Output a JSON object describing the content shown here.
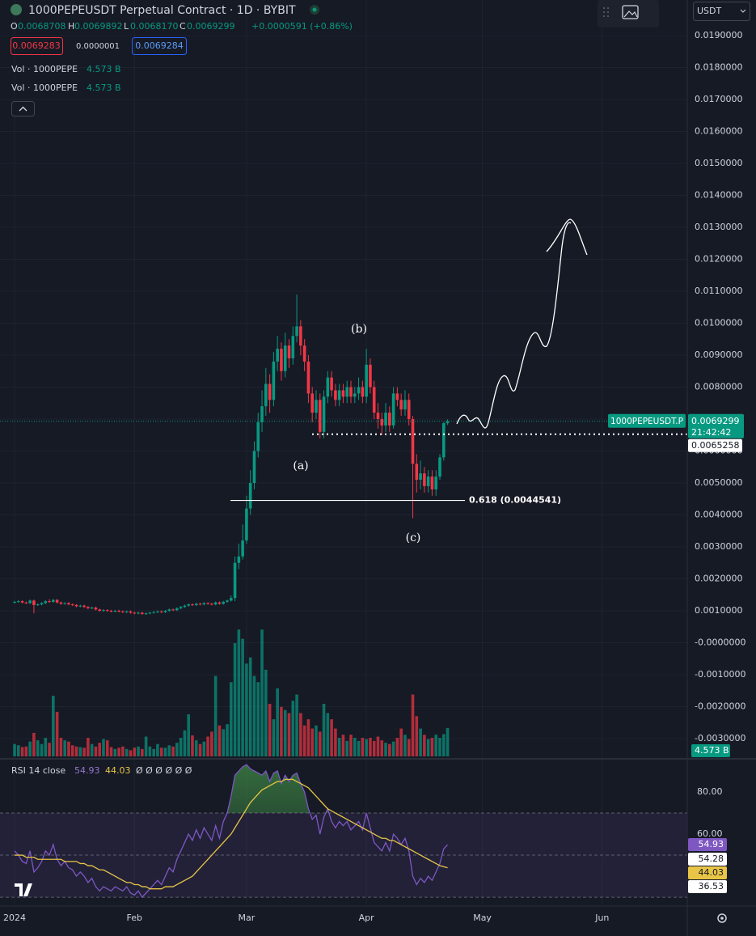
{
  "chart_data": {
    "type": "candlestick",
    "title": "1000PEPEUSDT Perpetual Contract · 1D · BYBIT",
    "legend_ohlc": {
      "O": "O",
      "open": "0.0068708",
      "H": "H",
      "high": "0.0069892",
      "L": "L",
      "low": "0.0068170",
      "C": "C",
      "close": "0.0069299",
      "change": "+0.0000591 (+0.86%)"
    },
    "sell_price": "0.0069283",
    "spread": "0.0000001",
    "buy_price": "0.0069284",
    "currency": "USDT",
    "volume_legend": [
      {
        "name": "Vol · 1000PEPE",
        "value": "4.573 B"
      },
      {
        "name": "Vol · 1000PEPE",
        "value": "4.573 B"
      }
    ],
    "up_color": "#089981",
    "down_color": "#f23645",
    "open": [
      0.00126,
      0.00128,
      0.0013,
      0.00126,
      0.00124,
      0.00132,
      0.00118,
      0.0012,
      0.00124,
      0.0013,
      0.00128,
      0.00134,
      0.00126,
      0.00122,
      0.00124,
      0.0012,
      0.00118,
      0.00114,
      0.00116,
      0.00112,
      0.00108,
      0.0011,
      0.00104,
      0.001,
      0.00102,
      0.001,
      0.00098,
      0.001,
      0.00098,
      0.00096,
      0.00098,
      0.00094,
      0.00092,
      0.00094,
      0.0009,
      0.00092,
      0.00094,
      0.00096,
      0.00098,
      0.00096,
      0.001,
      0.00104,
      0.00102,
      0.00108,
      0.00112,
      0.00116,
      0.0012,
      0.00118,
      0.00122,
      0.0012,
      0.00124,
      0.00122,
      0.0012,
      0.00126,
      0.00122,
      0.00128,
      0.00132,
      0.0014,
      0.0025,
      0.0027,
      0.0032,
      0.0042,
      0.005,
      0.006,
      0.0069,
      0.0074,
      0.0081,
      0.0076,
      0.0088,
      0.0092,
      0.0085,
      0.0093,
      0.0089,
      0.0096,
      0.0099,
      0.0093,
      0.0088,
      0.0078,
      0.0072,
      0.0076,
      0.0066,
      0.0077,
      0.0083,
      0.0079,
      0.0076,
      0.0079,
      0.0077,
      0.008,
      0.0077,
      0.0078,
      0.008,
      0.0077,
      0.0087,
      0.008,
      0.0072,
      0.007,
      0.0068,
      0.0072,
      0.0068,
      0.0078,
      0.0076,
      0.0073,
      0.0076,
      0.007,
      0.0056,
      0.0051,
      0.0053,
      0.0049,
      0.0052,
      0.0048,
      0.0052,
      0.0058,
      0.0068708
    ],
    "high": [
      0.00131,
      0.00133,
      0.00133,
      0.00129,
      0.00135,
      0.00135,
      0.00123,
      0.00127,
      0.00133,
      0.00136,
      0.00137,
      0.00137,
      0.00129,
      0.00127,
      0.00127,
      0.00123,
      0.00121,
      0.00119,
      0.00119,
      0.00115,
      0.00113,
      0.00113,
      0.00107,
      0.00105,
      0.00105,
      0.00103,
      0.00103,
      0.00103,
      0.00101,
      0.00101,
      0.00101,
      0.00097,
      0.00097,
      0.00097,
      0.00095,
      0.00097,
      0.00099,
      0.00101,
      0.00101,
      0.00103,
      0.00107,
      0.00107,
      0.00111,
      0.00115,
      0.00119,
      0.00123,
      0.00123,
      0.00125,
      0.00125,
      0.00127,
      0.00127,
      0.00125,
      0.00129,
      0.00129,
      0.00131,
      0.00135,
      0.00148,
      0.0027,
      0.0031,
      0.0037,
      0.0046,
      0.0054,
      0.0063,
      0.0072,
      0.0079,
      0.0086,
      0.0084,
      0.0091,
      0.0096,
      0.0094,
      0.0097,
      0.0095,
      0.0099,
      0.0109,
      0.0101,
      0.0095,
      0.009,
      0.008,
      0.0079,
      0.0078,
      0.0079,
      0.0085,
      0.0085,
      0.0081,
      0.0081,
      0.0081,
      0.0082,
      0.0082,
      0.008,
      0.0083,
      0.0082,
      0.0092,
      0.0089,
      0.0082,
      0.0075,
      0.0072,
      0.0075,
      0.0074,
      0.008,
      0.008,
      0.0078,
      0.0079,
      0.0078,
      0.0071,
      0.0059,
      0.0057,
      0.0055,
      0.0054,
      0.0054,
      0.0054,
      0.0059,
      0.0069,
      0.0069892
    ],
    "low": [
      0.00123,
      0.00125,
      0.00123,
      0.00121,
      0.00121,
      0.00092,
      0.00115,
      0.00117,
      0.00121,
      0.00125,
      0.00125,
      0.00123,
      0.00119,
      0.00119,
      0.00117,
      0.00115,
      0.00111,
      0.00111,
      0.00109,
      0.00105,
      0.00105,
      0.00101,
      0.00097,
      0.00097,
      0.00097,
      0.00095,
      0.00095,
      0.00095,
      0.00093,
      0.00093,
      0.00091,
      0.00089,
      0.00089,
      0.00087,
      0.00087,
      0.00089,
      0.00091,
      0.00093,
      0.00093,
      0.00093,
      0.00097,
      0.00099,
      0.00099,
      0.00105,
      0.00109,
      0.00113,
      0.00115,
      0.00115,
      0.00117,
      0.00117,
      0.00119,
      0.00117,
      0.00117,
      0.00119,
      0.00119,
      0.00125,
      0.00129,
      0.0013,
      0.0023,
      0.0026,
      0.0031,
      0.004,
      0.0048,
      0.0058,
      0.0066,
      0.0071,
      0.0072,
      0.0074,
      0.0085,
      0.0082,
      0.0083,
      0.0086,
      0.0087,
      0.0094,
      0.009,
      0.0085,
      0.0075,
      0.0069,
      0.007,
      0.0064,
      0.0064,
      0.0075,
      0.0077,
      0.0074,
      0.0074,
      0.0075,
      0.0075,
      0.0075,
      0.0075,
      0.0076,
      0.0075,
      0.0075,
      0.0078,
      0.007,
      0.0067,
      0.0065,
      0.0066,
      0.0066,
      0.0067,
      0.0074,
      0.0071,
      0.0071,
      0.0068,
      0.0039,
      0.0047,
      0.0048,
      0.0047,
      0.0047,
      0.0046,
      0.0046,
      0.0051,
      0.0057,
      0.006817
    ],
    "close": [
      0.00128,
      0.0013,
      0.00126,
      0.00124,
      0.00132,
      0.00118,
      0.0012,
      0.00124,
      0.0013,
      0.00128,
      0.00134,
      0.00126,
      0.00122,
      0.00124,
      0.0012,
      0.00118,
      0.00114,
      0.00116,
      0.00112,
      0.00108,
      0.0011,
      0.00104,
      0.001,
      0.00102,
      0.001,
      0.00098,
      0.001,
      0.00098,
      0.00096,
      0.00098,
      0.00094,
      0.00092,
      0.00094,
      0.0009,
      0.00092,
      0.00094,
      0.00096,
      0.00098,
      0.00096,
      0.001,
      0.00104,
      0.00102,
      0.00108,
      0.00112,
      0.00116,
      0.0012,
      0.00118,
      0.00122,
      0.0012,
      0.00124,
      0.00122,
      0.0012,
      0.00126,
      0.00122,
      0.00128,
      0.00132,
      0.0014,
      0.0025,
      0.0027,
      0.0032,
      0.0042,
      0.005,
      0.006,
      0.0069,
      0.0074,
      0.0081,
      0.0076,
      0.0088,
      0.0092,
      0.0085,
      0.0093,
      0.0089,
      0.0096,
      0.0099,
      0.0093,
      0.0088,
      0.0078,
      0.0072,
      0.0076,
      0.0066,
      0.0077,
      0.0083,
      0.0079,
      0.0076,
      0.0079,
      0.0077,
      0.008,
      0.0077,
      0.0078,
      0.008,
      0.0077,
      0.0087,
      0.008,
      0.0072,
      0.007,
      0.0068,
      0.0072,
      0.0068,
      0.0078,
      0.0076,
      0.0073,
      0.0076,
      0.007,
      0.0056,
      0.0051,
      0.0053,
      0.0049,
      0.0052,
      0.0048,
      0.0052,
      0.0058,
      0.0068708,
      0.0069299
    ],
    "volume": [
      2.0,
      1.8,
      1.5,
      1.6,
      2.4,
      3.8,
      2.6,
      2.0,
      3.0,
      2.2,
      9.8,
      7.2,
      3.0,
      2.6,
      2.4,
      1.8,
      1.6,
      1.5,
      1.4,
      3.0,
      2.0,
      1.6,
      2.2,
      2.8,
      2.6,
      1.5,
      1.2,
      1.4,
      1.6,
      1.2,
      1.0,
      1.4,
      1.6,
      1.2,
      3.2,
      1.6,
      1.2,
      2.0,
      1.4,
      1.4,
      1.8,
      1.6,
      2.2,
      3.0,
      4.2,
      6.8,
      3.4,
      2.6,
      2.0,
      2.4,
      3.2,
      4.0,
      13.0,
      5.0,
      4.4,
      5.2,
      12.0,
      18.3,
      20.5,
      19.0,
      15.0,
      16.0,
      13.0,
      12.0,
      20.5,
      14.0,
      8.5,
      6.0,
      11.0,
      8.0,
      7.5,
      7.0,
      9.0,
      10.0,
      7.0,
      5.0,
      6.0,
      4.5,
      5.0,
      4.0,
      8.5,
      7.0,
      6.0,
      4.5,
      3.0,
      3.5,
      2.5,
      3.5,
      3.0,
      2.5,
      3.0,
      2.8,
      3.0,
      2.5,
      3.2,
      2.6,
      2.2,
      2.0,
      2.4,
      3.0,
      4.5,
      3.5,
      2.8,
      10.0,
      6.5,
      4.5,
      3.5,
      2.8,
      3.0,
      3.5,
      3.0,
      3.6,
      4.573
    ],
    "volume_label": "4.573 B",
    "vlim": [
      0,
      30
    ],
    "xlim": [
      -3.77,
      174
    ],
    "xticks": [
      {
        "value": 0,
        "label": "2024"
      },
      {
        "value": 31,
        "label": "Feb"
      },
      {
        "value": 60,
        "label": "Mar"
      },
      {
        "value": 91,
        "label": "Apr"
      },
      {
        "value": 121,
        "label": "May"
      },
      {
        "value": 152,
        "label": "Jun"
      }
    ],
    "ylim": [
      -0.0036076,
      0.0201139
    ],
    "yticks": [
      {
        "value": 0.019,
        "label": "0.0190000"
      },
      {
        "value": 0.018,
        "label": "0.0180000"
      },
      {
        "value": 0.017,
        "label": "0.0170000"
      },
      {
        "value": 0.016,
        "label": "0.0160000"
      },
      {
        "value": 0.015,
        "label": "0.0150000"
      },
      {
        "value": 0.014,
        "label": "0.0140000"
      },
      {
        "value": 0.013,
        "label": "0.0130000"
      },
      {
        "value": 0.012,
        "label": "0.0120000"
      },
      {
        "value": 0.011,
        "label": "0.0110000"
      },
      {
        "value": 0.01,
        "label": "0.0100000"
      },
      {
        "value": 0.009,
        "label": "0.0090000"
      },
      {
        "value": 0.008,
        "label": "0.0080000"
      },
      {
        "value": 0.007,
        "label": "0.0070000"
      },
      {
        "value": 0.006,
        "label": "0.0060000"
      },
      {
        "value": 0.005,
        "label": "0.0050000"
      },
      {
        "value": 0.004,
        "label": "0.0040000"
      },
      {
        "value": 0.003,
        "label": "0.0030000"
      },
      {
        "value": 0.002,
        "label": "0.0020000"
      },
      {
        "value": 0.001,
        "label": "0.0010000"
      },
      {
        "value": 0,
        "label": "-0.0000000"
      },
      {
        "value": -0.001,
        "label": "-0.0010000"
      },
      {
        "value": -0.002,
        "label": "-0.0020000"
      },
      {
        "value": -0.003,
        "label": "-0.0030000"
      }
    ],
    "grid": true,
    "price_tag": {
      "symbol": "1000PEPEUSDT.P",
      "price": "0.0069299",
      "countdown": "21:42:42",
      "value": 0.0069299
    },
    "level_line": {
      "value": 0.0065258,
      "label": "0.0065258"
    },
    "fib": {
      "value": 0.0044541,
      "label": "0.618 (0.0044541)"
    },
    "annotations": [
      "(a)",
      "(b)",
      "(c)"
    ],
    "rsi": {
      "title": "RSI 14 close",
      "value_label": "54.93",
      "ma_label": "44.03",
      "placeholders": "Ø Ø Ø Ø Ø Ø",
      "color": "#7e57c2",
      "ma_color": "#e8c547",
      "values": [
        52,
        50,
        47,
        46,
        52,
        42,
        44,
        47,
        52,
        50,
        55,
        48,
        45,
        47,
        44,
        43,
        40,
        42,
        40,
        37,
        39,
        35,
        33,
        35,
        34,
        33,
        35,
        34,
        33,
        35,
        32,
        31,
        33,
        30,
        32,
        34,
        36,
        38,
        36,
        40,
        44,
        42,
        48,
        52,
        56,
        60,
        57,
        62,
        58,
        63,
        60,
        57,
        64,
        58,
        66,
        70,
        78,
        88,
        90,
        92,
        93,
        91,
        90,
        89,
        88,
        90,
        85,
        89,
        90,
        84,
        88,
        85,
        88,
        89,
        84,
        80,
        72,
        67,
        69,
        60,
        68,
        72,
        66,
        63,
        66,
        64,
        66,
        62,
        64,
        66,
        62,
        70,
        63,
        56,
        54,
        52,
        56,
        52,
        60,
        58,
        55,
        58,
        52,
        40,
        36,
        39,
        37,
        40,
        38,
        42,
        46,
        53,
        54.93
      ],
      "ma": [
        50,
        50,
        50,
        49,
        49,
        49,
        48,
        48,
        48,
        48,
        48,
        48,
        48,
        47,
        47,
        47,
        47,
        46,
        46,
        45,
        45,
        44,
        43,
        43,
        42,
        41,
        40,
        39,
        38,
        37,
        37,
        36,
        36,
        35,
        35,
        34,
        34,
        34,
        34,
        35,
        35,
        35,
        36,
        37,
        38,
        39,
        40,
        42,
        44,
        46,
        48,
        50,
        52,
        54,
        56,
        58,
        60,
        63,
        66,
        69,
        72,
        75,
        77,
        79,
        81,
        82,
        83,
        84,
        85,
        85,
        86,
        86,
        86,
        85,
        84,
        83,
        82,
        80,
        78,
        76,
        74,
        72,
        71,
        70,
        69,
        68,
        67,
        66,
        65,
        64,
        63,
        62,
        61,
        60,
        59,
        58,
        58,
        57,
        57,
        56,
        55,
        54,
        53,
        52,
        51,
        50,
        49,
        48,
        47,
        46,
        45,
        44.5,
        44.03
      ],
      "ylim": [
        25.8,
        95
      ],
      "yticks": [
        {
          "value": 80,
          "label": "80.00"
        },
        {
          "value": 60,
          "label": "60.00"
        }
      ],
      "bands": [
        70,
        50,
        30
      ],
      "right_labels": [
        "54.93",
        "54.28",
        "44.03",
        "36.53"
      ]
    }
  }
}
